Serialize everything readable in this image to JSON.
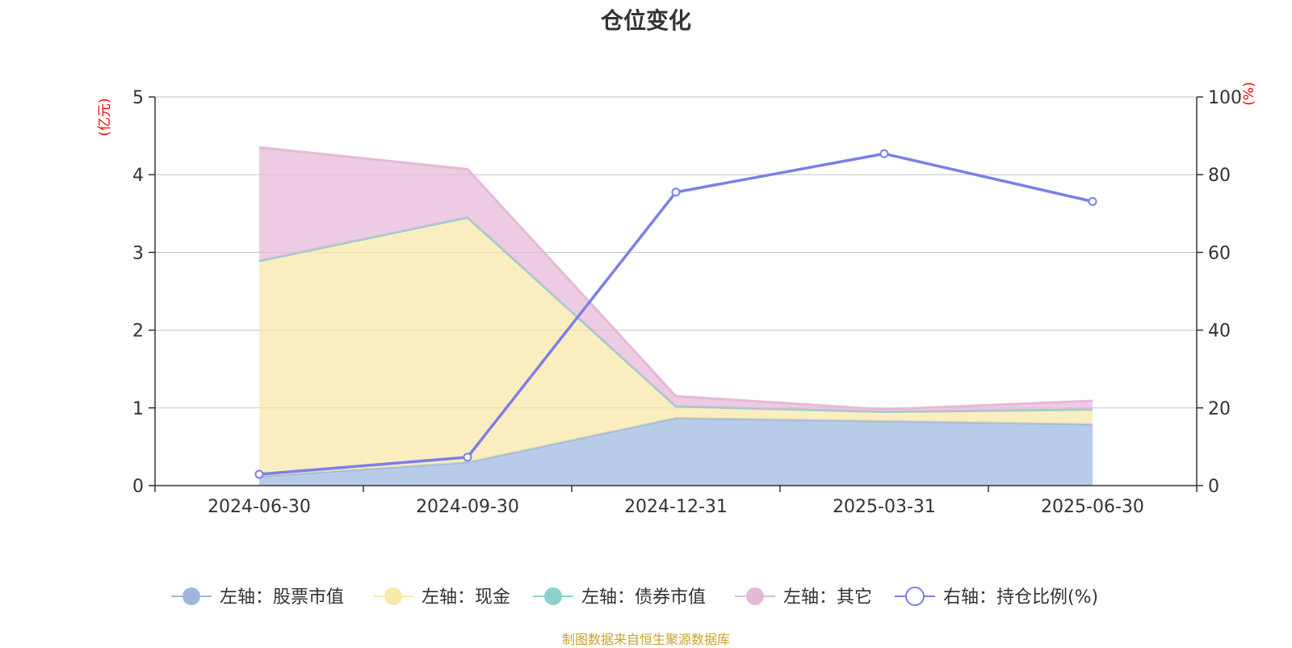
{
  "chart_data": {
    "type": "area",
    "title": "仓位变化",
    "source": "制图数据来自恒生聚源数据库",
    "categories": [
      "2024-06-30",
      "2024-09-30",
      "2024-12-31",
      "2025-03-31",
      "2025-06-30"
    ],
    "left_axis": {
      "unit_label": "(亿元)",
      "ylim": [
        0,
        5
      ],
      "ticks": [
        "0",
        "1",
        "2",
        "3",
        "4",
        "5"
      ]
    },
    "right_axis": {
      "unit_label": "(%)",
      "ylim": [
        0,
        100
      ],
      "ticks": [
        "0",
        "20",
        "40",
        "60",
        "80",
        "100"
      ]
    },
    "grid": true,
    "legend_position": "bottom",
    "series": [
      {
        "name": "左轴：股票市值",
        "axis": "left",
        "kind": "stacked-area",
        "color": "#9db8e0",
        "values": [
          0.12,
          0.3,
          0.87,
          0.83,
          0.79
        ]
      },
      {
        "name": "左轴：现金",
        "axis": "left",
        "kind": "stacked-area",
        "color": "#f8e8a8",
        "values": [
          2.77,
          3.15,
          0.15,
          0.12,
          0.19
        ]
      },
      {
        "name": "左轴：债券市值",
        "axis": "left",
        "kind": "stacked-area",
        "color": "#8ed0cc",
        "values": [
          0,
          0,
          0,
          0,
          0
        ]
      },
      {
        "name": "左轴：其它",
        "axis": "left",
        "kind": "stacked-area",
        "color": "#e6b8d8",
        "values": [
          1.46,
          0.62,
          0.13,
          0.03,
          0.11
        ]
      },
      {
        "name": "右轴：持仓比例(%)",
        "axis": "right",
        "kind": "line",
        "color": "#7b7fe8",
        "values": [
          2.9,
          7.3,
          75.5,
          85.4,
          73.1
        ]
      }
    ]
  }
}
